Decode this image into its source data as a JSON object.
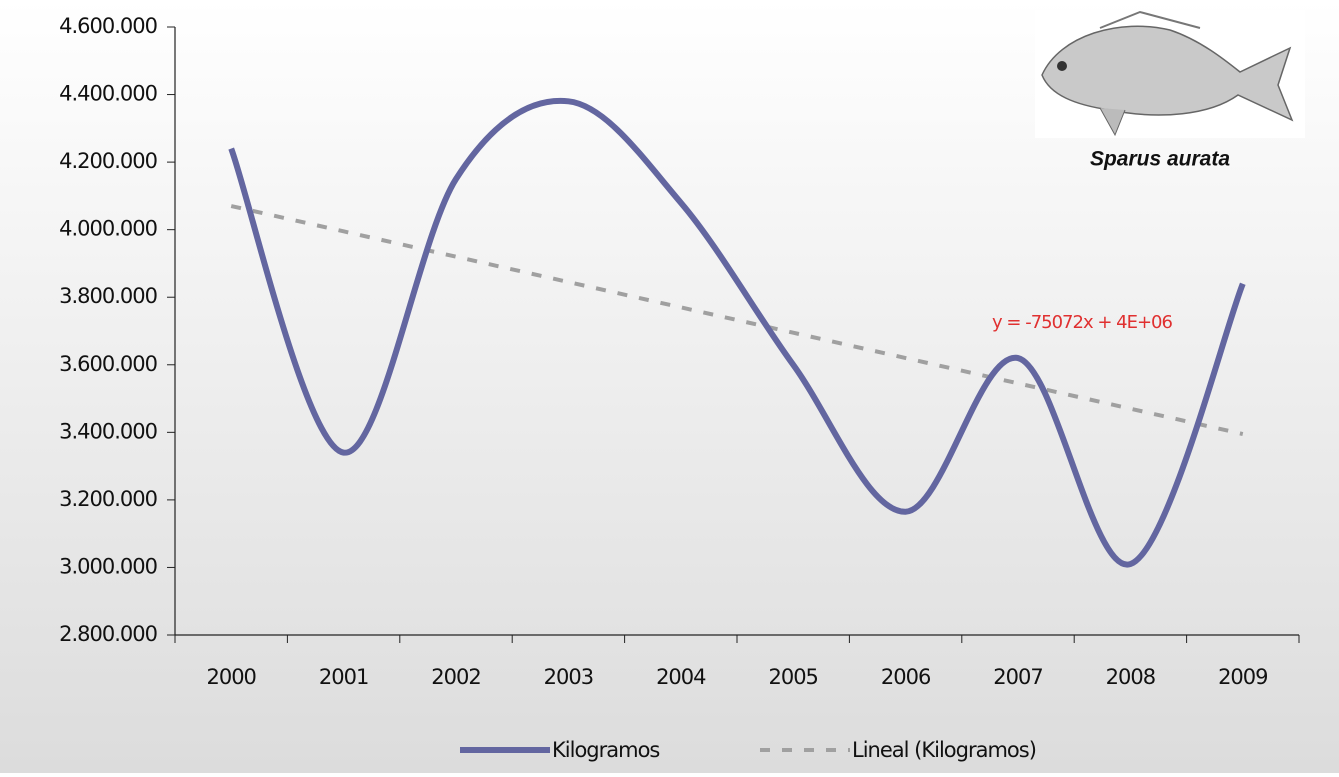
{
  "chart_data": {
    "type": "line",
    "categories": [
      "2000",
      "2001",
      "2002",
      "2003",
      "2004",
      "2005",
      "2006",
      "2007",
      "2008",
      "2009"
    ],
    "series": [
      {
        "name": "Kilogramos",
        "color": "#6366a0",
        "values": [
          4240000,
          3340000,
          4150000,
          4380000,
          4080000,
          3600000,
          3165000,
          3620000,
          3010000,
          3840000
        ]
      },
      {
        "name": "Lineal (Kilogramos)",
        "color": "#a0a0a0",
        "dashed": true,
        "values": [
          4070000,
          3995000,
          3920000,
          3845000,
          3770000,
          3695000,
          3620000,
          3545000,
          3470000,
          3395000
        ]
      }
    ],
    "ylim": [
      2800000,
      4600000
    ],
    "yticks": [
      {
        "value": 2800000,
        "label": "2.800.000"
      },
      {
        "value": 3000000,
        "label": "3.000.000"
      },
      {
        "value": 3200000,
        "label": "3.200.000"
      },
      {
        "value": 3400000,
        "label": "3.400.000"
      },
      {
        "value": 3600000,
        "label": "3.600.000"
      },
      {
        "value": 3800000,
        "label": "3.800.000"
      },
      {
        "value": 4000000,
        "label": "4.000.000"
      },
      {
        "value": 4200000,
        "label": "4.200.000"
      },
      {
        "value": 4400000,
        "label": "4.400.000"
      },
      {
        "value": 4600000,
        "label": "4.600.000"
      }
    ],
    "annotation": "y = -75072x + 4E+06",
    "image_caption": "Sparus aurata",
    "smooth": true,
    "legend": "bottom"
  }
}
